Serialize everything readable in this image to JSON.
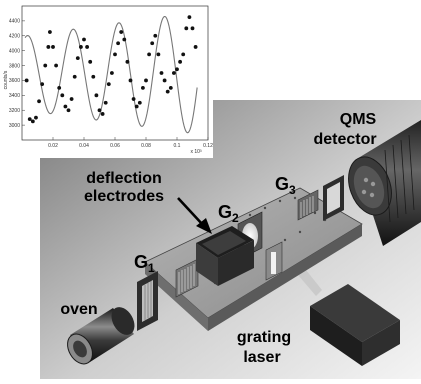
{
  "labels": {
    "qms_line1": "QMS",
    "qms_line2": "detector",
    "deflection_line1": "deflection",
    "deflection_line2": "electrodes",
    "g1": "G",
    "g1_sub": "1",
    "g2": "G",
    "g2_sub": "2",
    "g3": "G",
    "g3_sub": "3",
    "oven": "oven",
    "grating_line1": "grating",
    "grating_line2": "laser"
  },
  "chart_data": {
    "type": "scatter",
    "ylabel": "counts/s",
    "x_multiplier_label": "x 10³",
    "xlim": [
      0,
      0.12
    ],
    "ylim": [
      2800,
      4600
    ],
    "x_ticks": [
      "0.02",
      "0.04",
      "0.06",
      "0.08",
      "0.1",
      "0.12"
    ],
    "y_ticks": [
      "3000",
      "3200",
      "3400",
      "3600",
      "3800",
      "4000",
      "4200",
      "4400"
    ],
    "fit": {
      "mean": 3700,
      "amplitude": 580,
      "period": 0.0295,
      "phase_x": 0.0035
    },
    "points": [
      [
        0.003,
        3600
      ],
      [
        0.005,
        3080
      ],
      [
        0.007,
        3050
      ],
      [
        0.009,
        3100
      ],
      [
        0.011,
        3320
      ],
      [
        0.013,
        3550
      ],
      [
        0.015,
        3800
      ],
      [
        0.017,
        4050
      ],
      [
        0.018,
        4250
      ],
      [
        0.02,
        4050
      ],
      [
        0.022,
        3800
      ],
      [
        0.024,
        3500
      ],
      [
        0.026,
        3400
      ],
      [
        0.028,
        3250
      ],
      [
        0.03,
        3200
      ],
      [
        0.032,
        3350
      ],
      [
        0.034,
        3650
      ],
      [
        0.036,
        3900
      ],
      [
        0.038,
        4050
      ],
      [
        0.04,
        4150
      ],
      [
        0.042,
        4050
      ],
      [
        0.044,
        3850
      ],
      [
        0.046,
        3650
      ],
      [
        0.048,
        3400
      ],
      [
        0.05,
        3200
      ],
      [
        0.052,
        3150
      ],
      [
        0.054,
        3300
      ],
      [
        0.056,
        3550
      ],
      [
        0.058,
        3700
      ],
      [
        0.06,
        3950
      ],
      [
        0.062,
        4100
      ],
      [
        0.064,
        4250
      ],
      [
        0.066,
        4150
      ],
      [
        0.068,
        3850
      ],
      [
        0.07,
        3600
      ],
      [
        0.072,
        3350
      ],
      [
        0.074,
        3250
      ],
      [
        0.076,
        3300
      ],
      [
        0.078,
        3500
      ],
      [
        0.08,
        3600
      ],
      [
        0.082,
        3950
      ],
      [
        0.084,
        4100
      ],
      [
        0.086,
        4200
      ],
      [
        0.088,
        3950
      ],
      [
        0.09,
        3700
      ],
      [
        0.092,
        3600
      ],
      [
        0.094,
        3450
      ],
      [
        0.096,
        3500
      ],
      [
        0.098,
        3700
      ],
      [
        0.1,
        3750
      ],
      [
        0.102,
        3850
      ],
      [
        0.104,
        3950
      ],
      [
        0.106,
        4300
      ],
      [
        0.108,
        4450
      ],
      [
        0.11,
        4300
      ],
      [
        0.112,
        4050
      ]
    ]
  },
  "colors": {
    "background": "#ffffff",
    "platform_top": "#9a9a9a",
    "platform_side": "#5a5a5a",
    "dark_device": "#2e2e2e",
    "fit_curve": "#777777"
  }
}
